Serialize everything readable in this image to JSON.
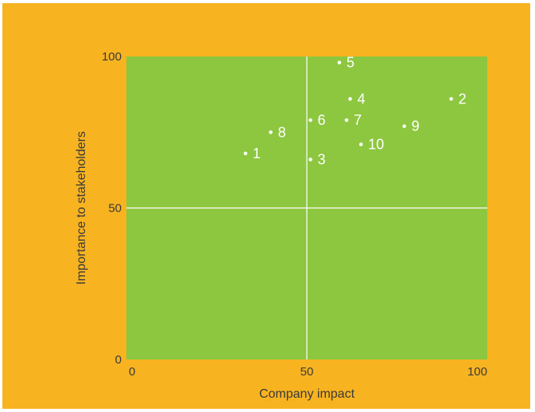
{
  "colors": {
    "background": "#f8b320",
    "plot_area": "#8dc63f",
    "grid": "#ffffff",
    "points": "#ffffff",
    "text": "#3a3a3a"
  },
  "chart_data": {
    "type": "scatter",
    "title": "",
    "xlabel": "Company impact",
    "ylabel": "Importance to stakeholders",
    "xlim": [
      0,
      100
    ],
    "ylim": [
      0,
      100
    ],
    "x_ticks": [
      "0",
      "50",
      "100"
    ],
    "y_ticks": [
      "0",
      "50",
      "100"
    ],
    "grid": "quadrant lines at 50",
    "points": [
      {
        "label": "1",
        "x": 33,
        "y": 68
      },
      {
        "label": "2",
        "x": 90,
        "y": 86
      },
      {
        "label": "3",
        "x": 51,
        "y": 66
      },
      {
        "label": "4",
        "x": 62,
        "y": 86
      },
      {
        "label": "5",
        "x": 59,
        "y": 98
      },
      {
        "label": "6",
        "x": 51,
        "y": 79
      },
      {
        "label": "7",
        "x": 61,
        "y": 79
      },
      {
        "label": "8",
        "x": 40,
        "y": 75
      },
      {
        "label": "9",
        "x": 77,
        "y": 77
      },
      {
        "label": "10",
        "x": 65,
        "y": 71
      }
    ]
  }
}
